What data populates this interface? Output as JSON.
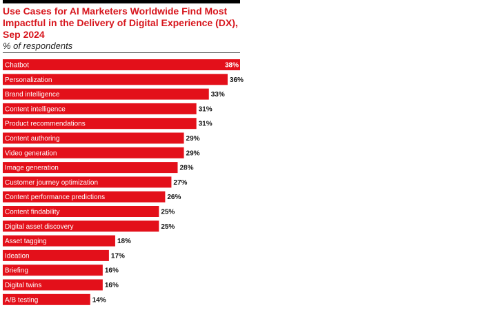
{
  "colors": {
    "bar": "#e3101a",
    "title": "#d7161d",
    "inside_label": "#ffffff",
    "outside_label": "#111111"
  },
  "chart_data": {
    "type": "bar",
    "orientation": "horizontal",
    "title": "Use Cases for AI Marketers Worldwide Find Most Impactful in the Delivery of Digital Experience (DX), Sep 2024",
    "subtitle": "% of respondents",
    "value_suffix": "%",
    "grid": false,
    "xlim": [
      0,
      38
    ],
    "categories": [
      "Chatbot",
      "Personalization",
      "Brand intelligence",
      "Content intelligence",
      "Product recommendations",
      "Content authoring",
      "Video generation",
      "Image generation",
      "Customer journey optimization",
      "Content performance predictions",
      "Content findability",
      "Digital asset discovery",
      "Asset tagging",
      "Ideation",
      "Briefing",
      "Digital twins",
      "A/B testing"
    ],
    "values": [
      38,
      36,
      33,
      31,
      31,
      29,
      29,
      28,
      27,
      26,
      25,
      25,
      18,
      17,
      16,
      16,
      14
    ]
  }
}
